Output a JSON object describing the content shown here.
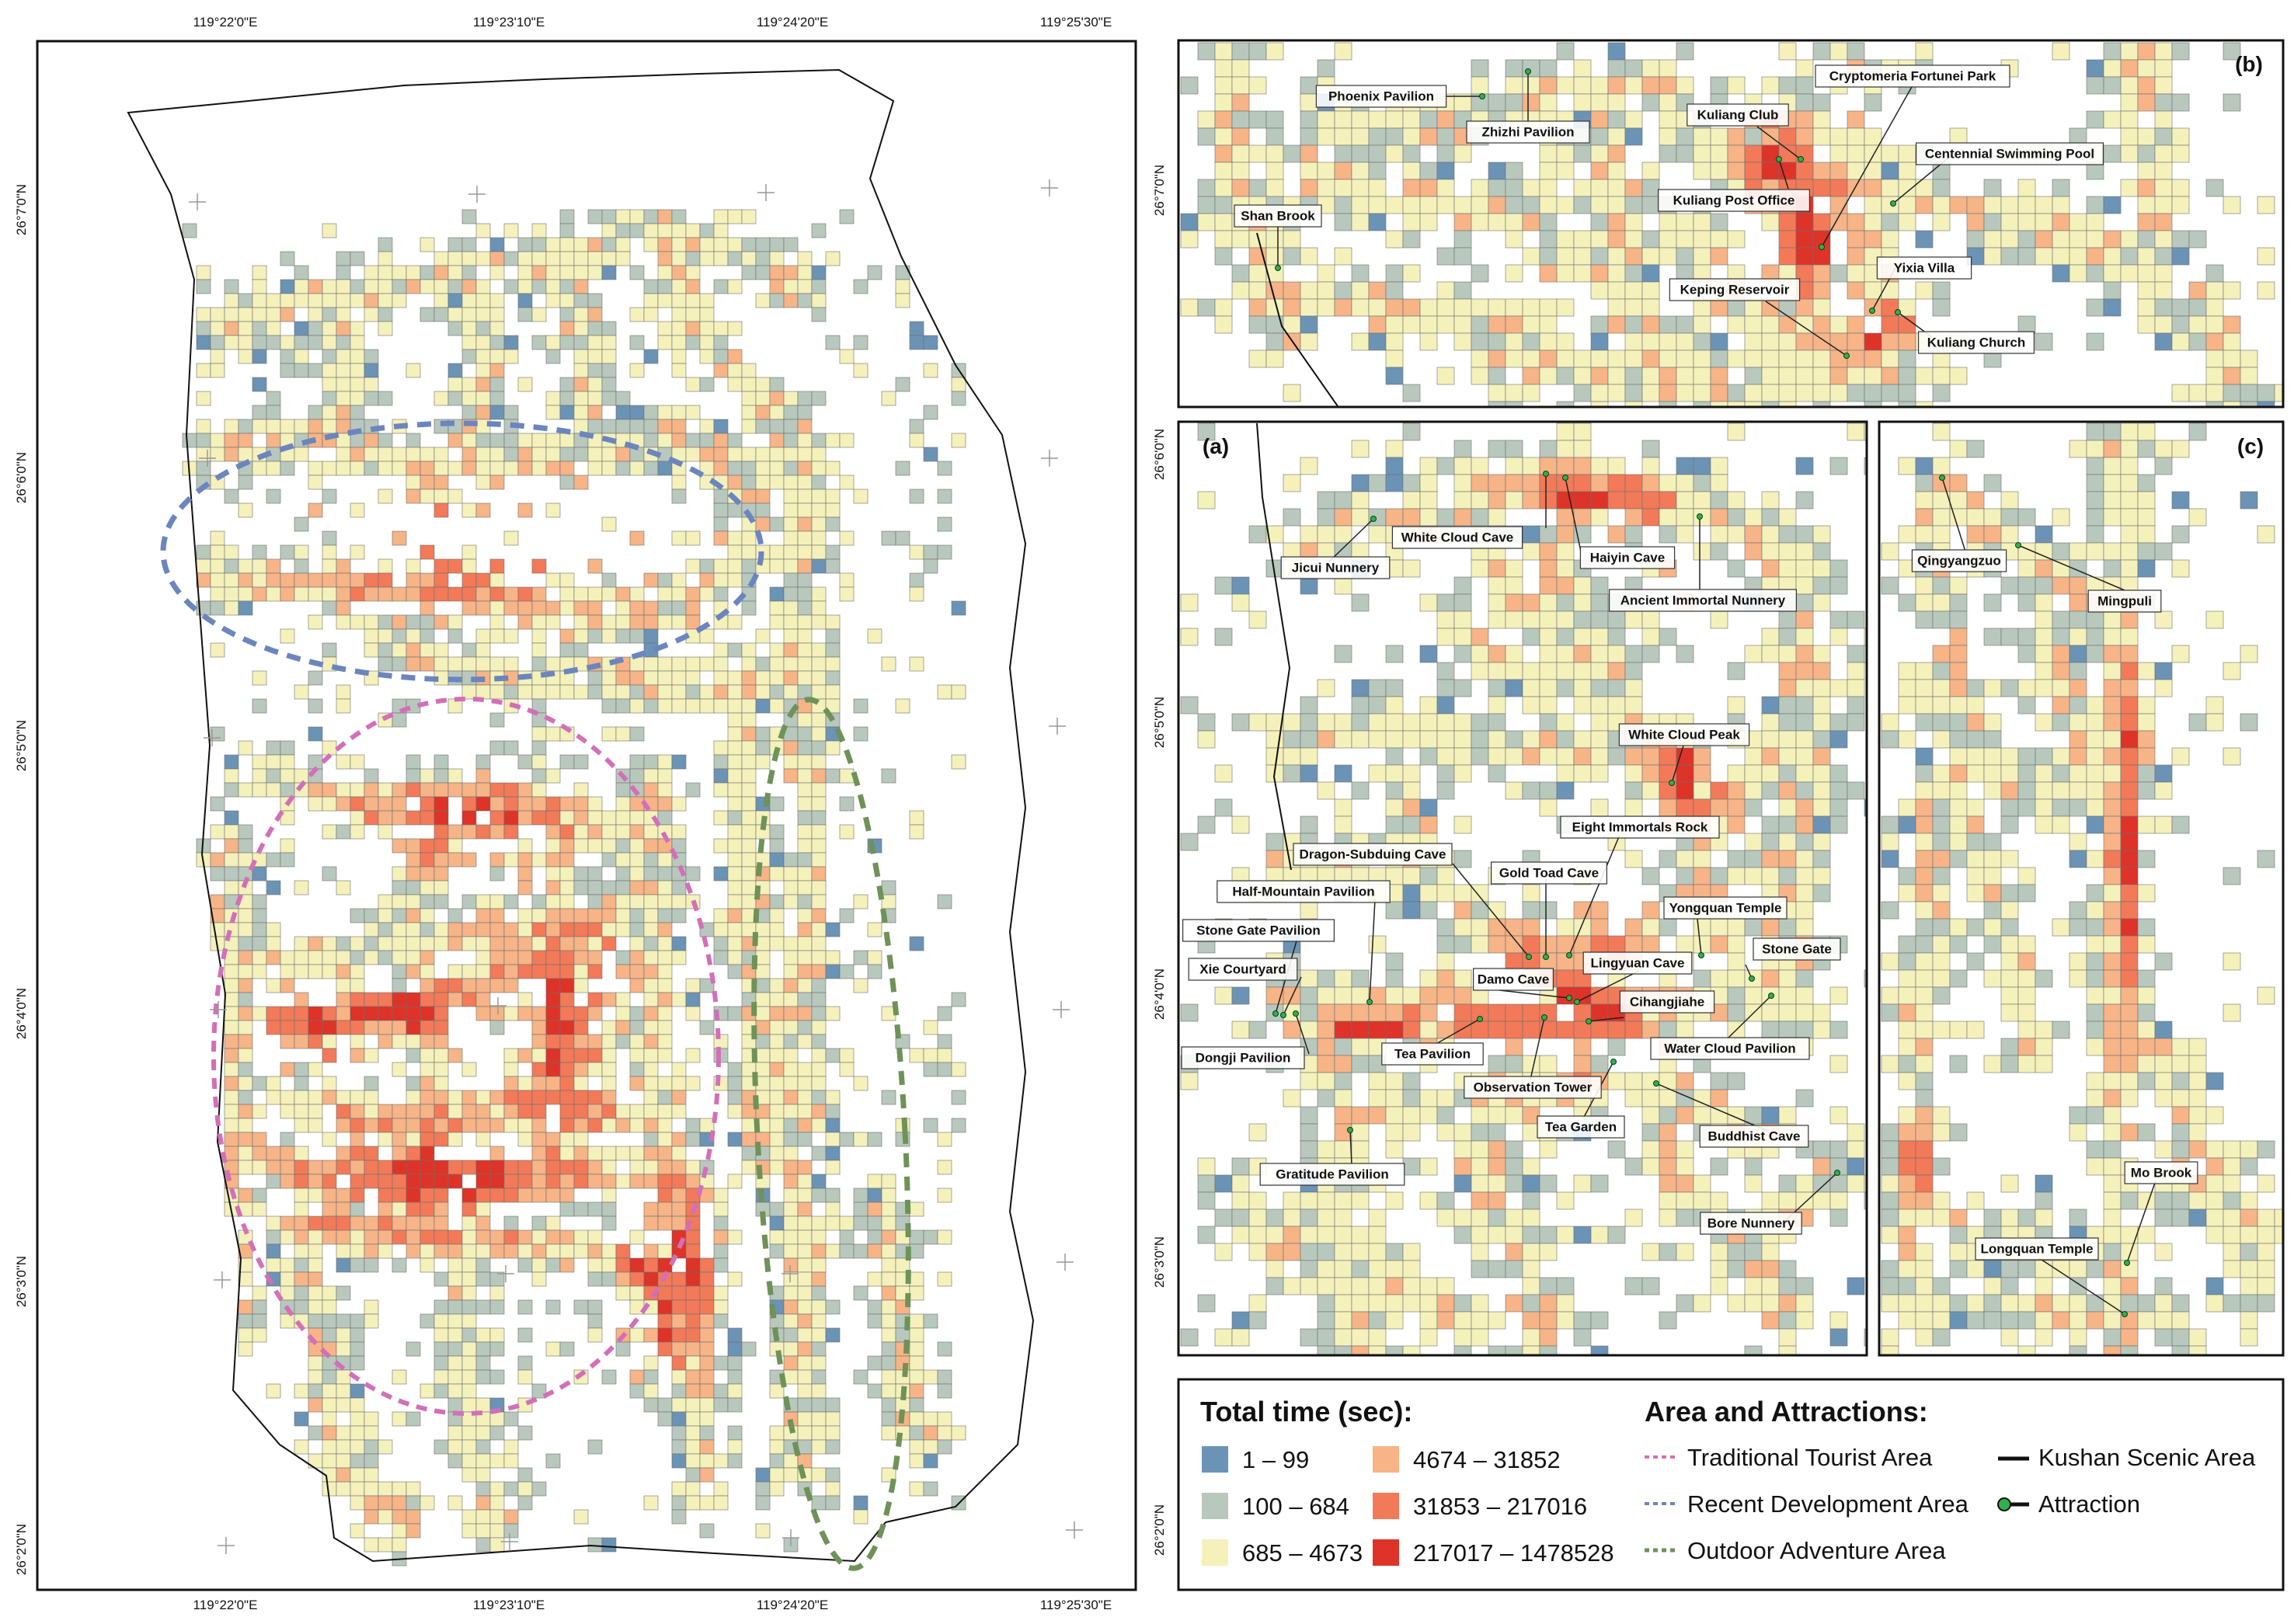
{
  "colors": {
    "c1": "#6b93b5",
    "c2": "#b8c8bd",
    "c3": "#f4f1bb",
    "c4": "#f6b487",
    "c5": "#f27a58",
    "c6": "#de3328",
    "traditional": "#d36fb8",
    "recent": "#6b85be",
    "outdoor": "#6e9258"
  },
  "main_map": {
    "lon_ticks": [
      "119°22'0\"E",
      "119°23'10\"E",
      "119°24'20\"E",
      "119°25'30\"E"
    ],
    "lat_ticks": [
      "26°7'0\"N",
      "26°6'0\"N",
      "26°5'0\"N",
      "26°4'0\"N",
      "26°3'0\"N",
      "26°2'0\"N"
    ]
  },
  "panel_b": {
    "tag": "(b)",
    "lat_ticks": [
      "26°7'0\"N"
    ],
    "labels": [
      "Phoenix Pavilion",
      "Zhizhi Pavilion",
      "Cryptomeria Fortunei Park",
      "Kuliang Club",
      "Centennial Swimming Pool",
      "Kuliang Post Office",
      "Shan Brook",
      "Yixia Villa",
      "Keping Reservoir",
      "Kuliang Church"
    ]
  },
  "panel_a": {
    "tag": "(a)",
    "lat_ticks": [
      "26°6'0\"N",
      "26°5'0\"N",
      "26°4'0\"N",
      "26°3'0\"N"
    ],
    "labels": [
      "White Cloud Cave",
      "Haiyin Cave",
      "Jicui Nunnery",
      "Ancient Immortal Nunnery",
      "White Cloud Peak",
      "Eight Immortals Rock",
      "Dragon-Subduing Cave",
      "Gold Toad Cave",
      "Half-Mountain Pavilion",
      "Yongquan Temple",
      "Stone Gate Pavilion",
      "Stone Gate",
      "Lingyuan Cave",
      "Xie Courtyard",
      "Damo Cave",
      "Cihangjiahe",
      "Water Cloud Pavilion",
      "Dongji Pavilion",
      "Tea Pavilion",
      "Observation Tower",
      "Tea Garden",
      "Buddhist Cave",
      "Gratitude Pavilion",
      "Bore Nunnery"
    ]
  },
  "panel_c": {
    "tag": "(c)",
    "lat_ticks": [
      "26°2'0\"N"
    ],
    "labels": [
      "Qingyangzuo",
      "Mingpuli",
      "Mo Brook",
      "Longquan Temple"
    ]
  },
  "legend": {
    "time_title": "Total time (sec):",
    "classes": [
      "1 – 99",
      "100 – 684",
      "685 – 4673",
      "4674 – 31852",
      "31853 – 217016",
      "217017 – 1478528"
    ],
    "area_title": "Area and Attractions:",
    "areas": [
      "Traditional Tourist Area",
      "Recent Development Area",
      "Outdoor Adventure Area"
    ],
    "kushan": "Kushan Scenic Area",
    "attraction": "Attraction"
  }
}
